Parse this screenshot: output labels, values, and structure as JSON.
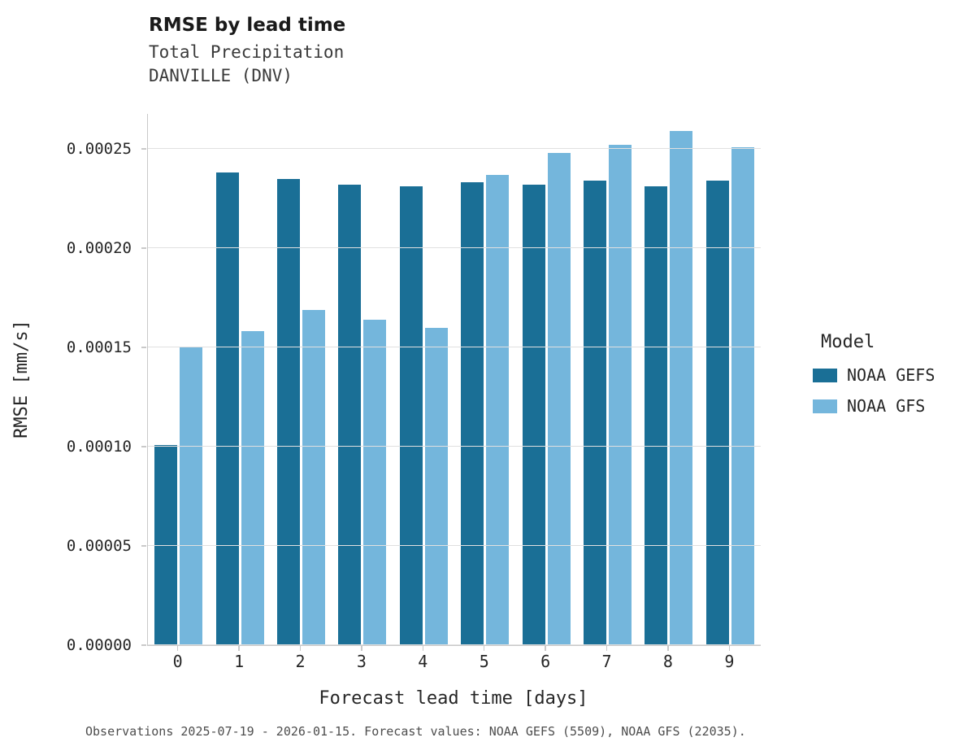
{
  "chart_data": {
    "type": "bar",
    "title": "RMSE by lead time",
    "subtitle_lines": [
      "Total Precipitation",
      "DANVILLE (DNV)"
    ],
    "xlabel": "Forecast lead time [days]",
    "ylabel": "RMSE [mm/s]",
    "categories": [
      "0",
      "1",
      "2",
      "3",
      "4",
      "5",
      "6",
      "7",
      "8",
      "9"
    ],
    "series": [
      {
        "name": "NOAA GEFS",
        "color": "#1a6f96",
        "values": [
          0.000101,
          0.000238,
          0.000235,
          0.000232,
          0.000231,
          0.000233,
          0.000232,
          0.000234,
          0.000231,
          0.000234
        ]
      },
      {
        "name": "NOAA GFS",
        "color": "#74b6dc",
        "values": [
          0.00015,
          0.000158,
          0.000169,
          0.000164,
          0.00016,
          0.000237,
          0.000248,
          0.000252,
          0.000259,
          0.000251
        ]
      }
    ],
    "ylim": [
      0,
      0.0002676
    ],
    "yticks": [
      {
        "value": 0.0,
        "label": "0.00000"
      },
      {
        "value": 5e-05,
        "label": "0.00005"
      },
      {
        "value": 0.0001,
        "label": "0.00010"
      },
      {
        "value": 0.00015,
        "label": "0.00015"
      },
      {
        "value": 0.0002,
        "label": "0.00020"
      },
      {
        "value": 0.00025,
        "label": "0.00025"
      }
    ],
    "legend_title": "Model",
    "legend_position": "right",
    "grid": "horizontal"
  },
  "caption": "Observations 2025-07-19 - 2026-01-15. Forecast values: NOAA GEFS (5509), NOAA GFS (22035)."
}
